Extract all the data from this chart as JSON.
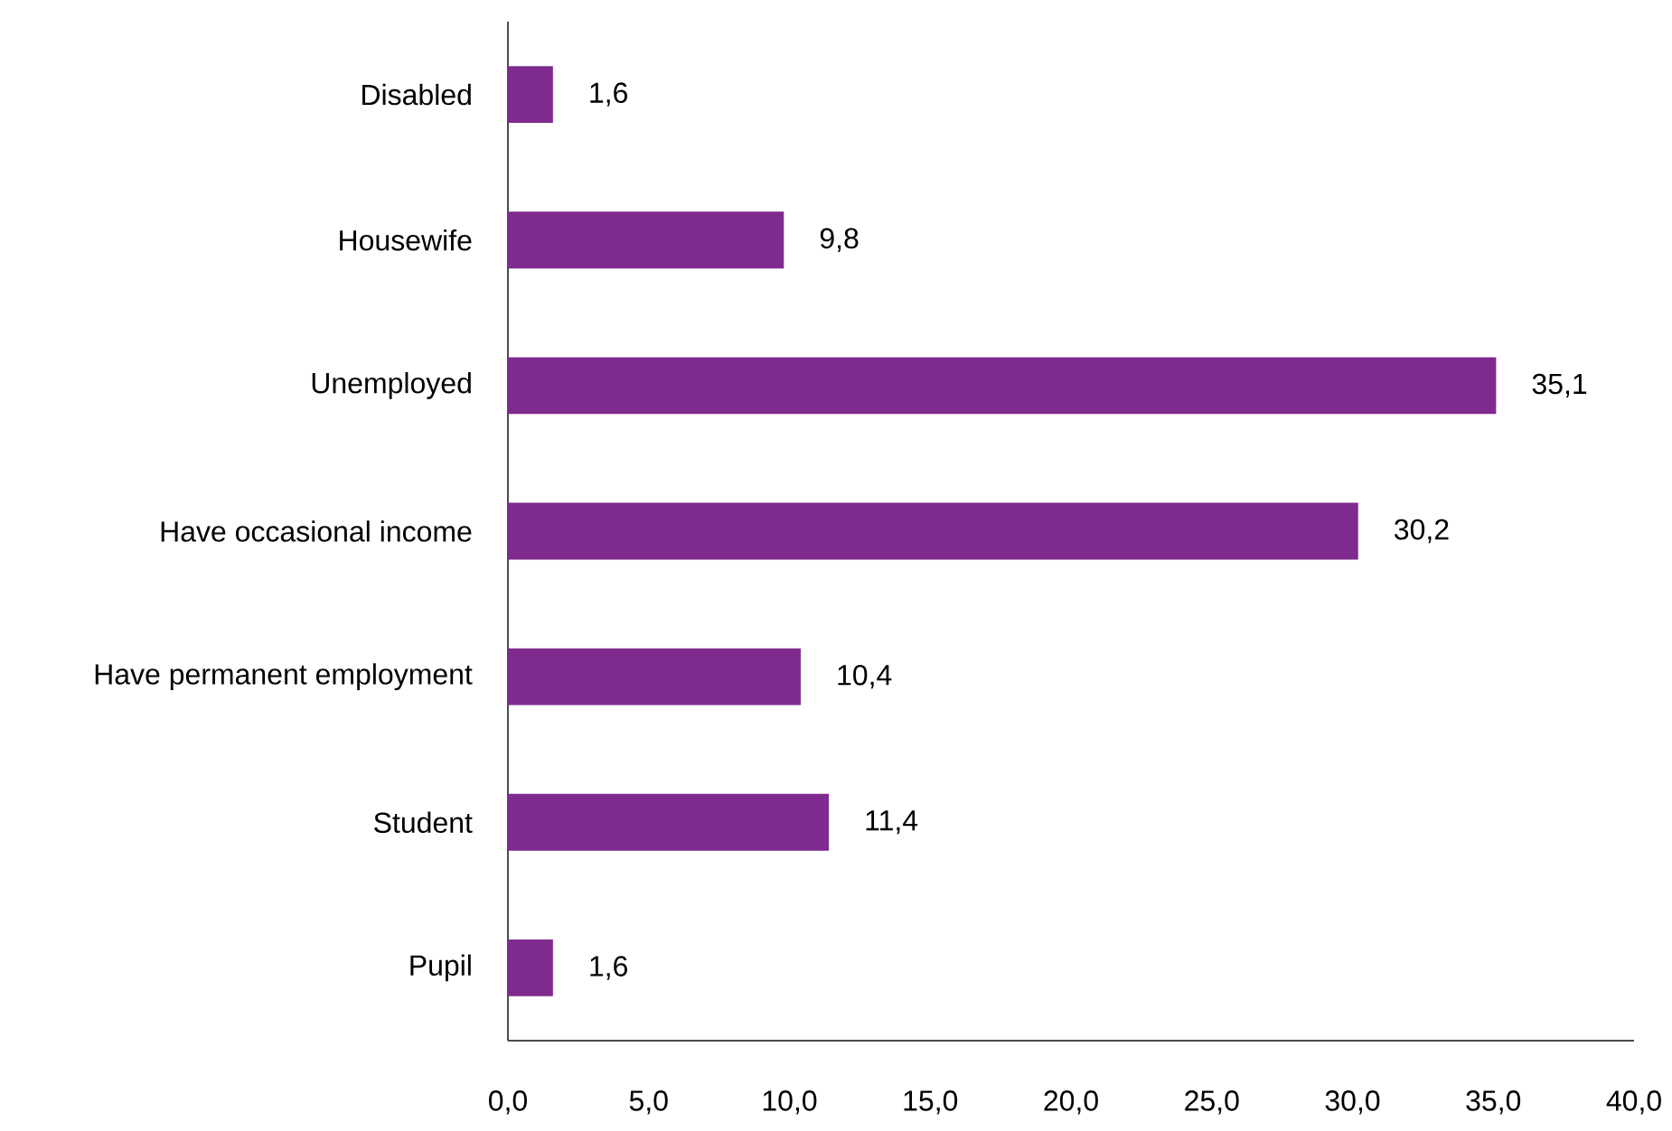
{
  "chart_data": {
    "type": "bar",
    "orientation": "horizontal",
    "categories": [
      "Disabled",
      "Housewife",
      "Unemployed",
      "Have occasional income",
      "Have permanent employment",
      "Student",
      "Pupil"
    ],
    "values": [
      1.6,
      9.8,
      35.1,
      30.2,
      10.4,
      11.4,
      1.6
    ],
    "value_labels": [
      "1,6",
      "9,8",
      "35,1",
      "30,2",
      "10,4",
      "11,4",
      "1,6"
    ],
    "color": "#7f2a8f",
    "xlim": [
      0,
      40
    ],
    "xticks": [
      {
        "value": 0,
        "label": "0,0"
      },
      {
        "value": 5,
        "label": "5,0"
      },
      {
        "value": 10,
        "label": "10,0"
      },
      {
        "value": 15,
        "label": "15,0"
      },
      {
        "value": 20,
        "label": "20,0"
      },
      {
        "value": 25,
        "label": "25,0"
      },
      {
        "value": 30,
        "label": "30,0"
      },
      {
        "value": 35,
        "label": "35,0"
      },
      {
        "value": 40,
        "label": "40,0"
      }
    ]
  }
}
